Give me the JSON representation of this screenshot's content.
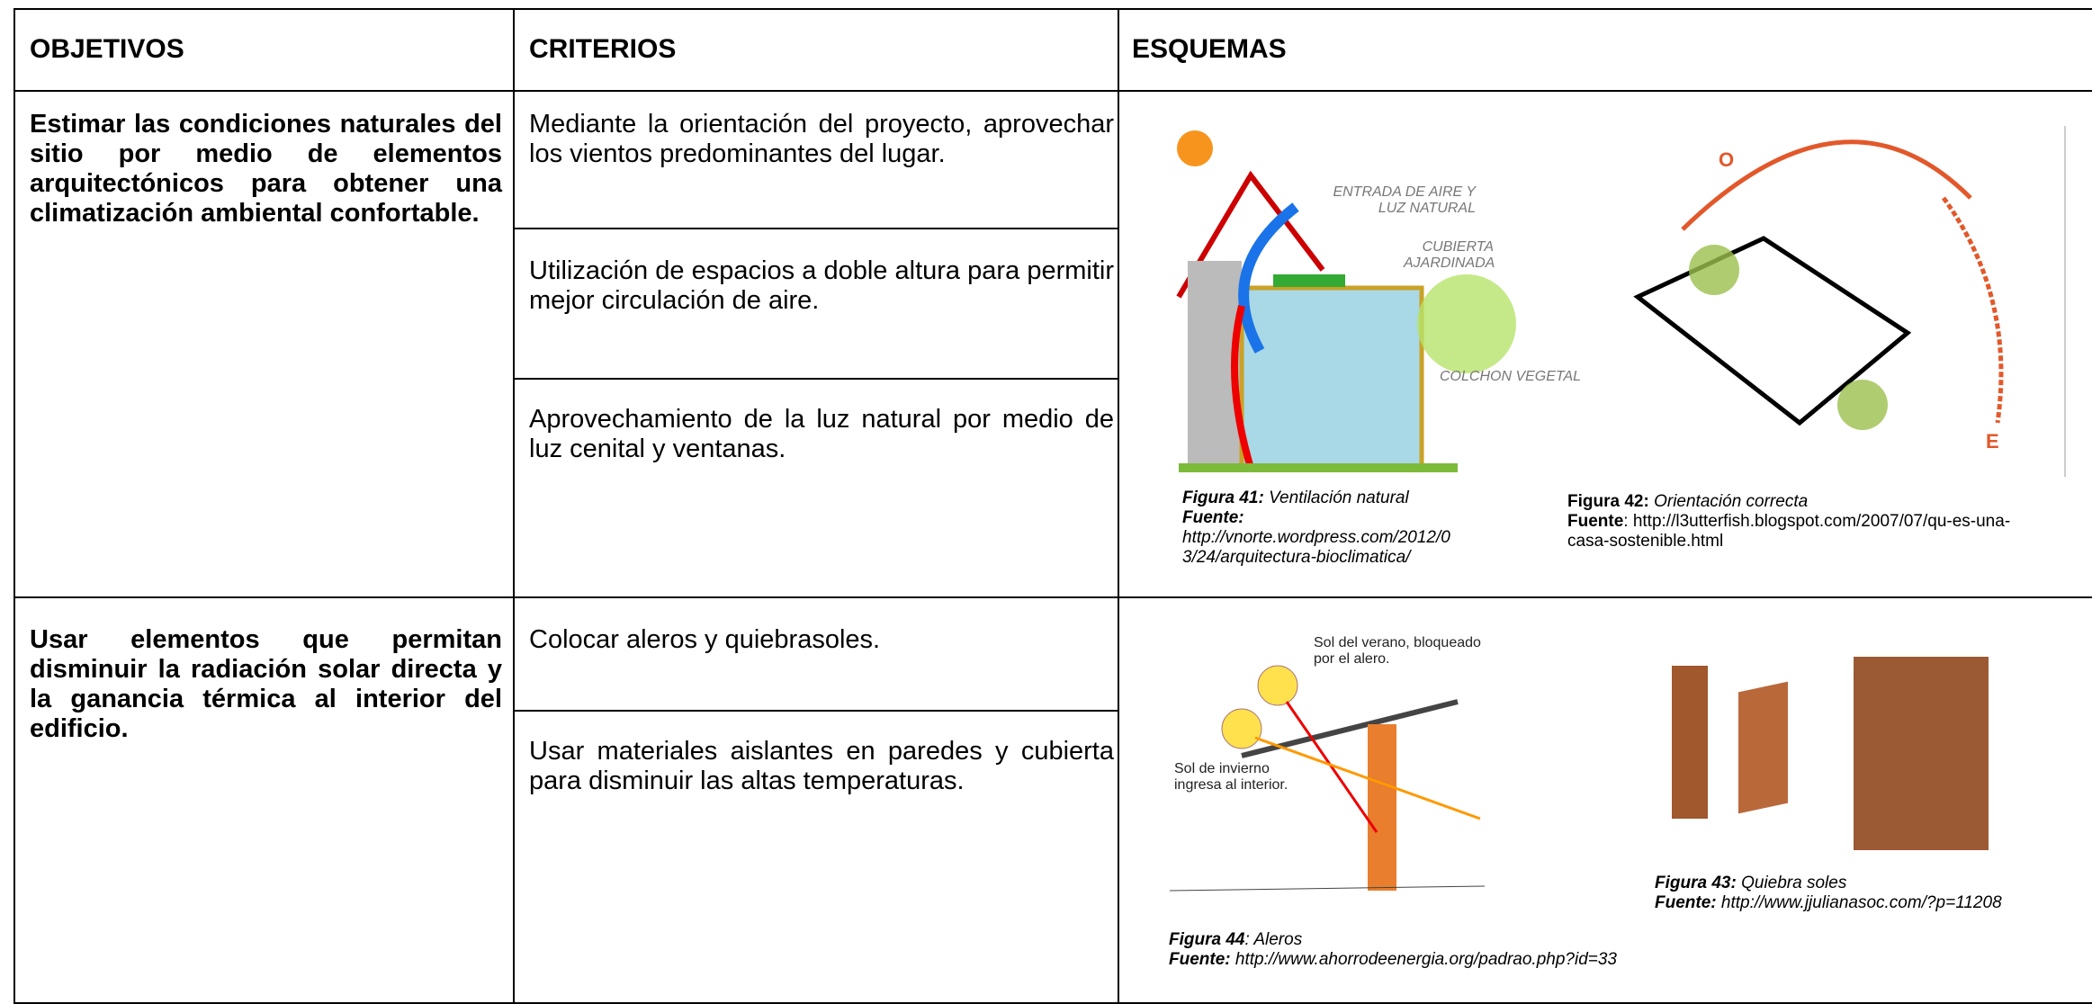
{
  "table": {
    "headers": [
      "OBJETIVOS",
      "CRITERIOS",
      "ESQUEMAS"
    ],
    "rows": [
      {
        "objective": "Estimar las condiciones naturales del sitio por medio de elementos arquitectónicos para obtener una climatización ambiental confortable.",
        "criteria": [
          "Mediante la orientación del proyecto, aprovechar los vientos predominantes del lugar.",
          "Utilización de espacios a doble altura para permitir mejor circulación de aire.",
          "Aprovechamiento de la luz natural por medio de luz cenital y ventanas."
        ],
        "figures": [
          {
            "number": "Figura 41:",
            "caption": "Ventilación natural",
            "source_label": "Fuente:",
            "source": "http://vnorte.wordpress.com/2012/03/24/arquitectura-bioclimatica/",
            "labels": [
              "ENTRADA DE AIRE Y LUZ NATURAL",
              "CUBIERTA AJARDINADA",
              "COLCHON VEGETAL"
            ]
          },
          {
            "number": "Figura 42:",
            "caption": "Orientación correcta",
            "source_label": "Fuente",
            "source": ": http://l3utterfish.blogspot.com/2007/07/qu-es-una-casa-sostenible.html",
            "labels": [
              "O",
              "E"
            ]
          }
        ]
      },
      {
        "objective": "Usar elementos que permitan disminuir la radiación solar directa y la ganancia térmica al interior del edificio.",
        "criteria": [
          "Colocar aleros y quiebrasoles.",
          "Usar materiales aislantes en paredes y cubierta para disminuir las altas temperaturas."
        ],
        "figures": [
          {
            "number": "Figura 44",
            "caption": ": Aleros",
            "source_label": "Fuente:",
            "source": "http://www.ahorrodeenergia.org/padrao.php?id=33",
            "labels": [
              "Sol del verano, bloqueado por el alero.",
              "Sol de invierno ingresa al interior."
            ]
          },
          {
            "number": "Figura 43:",
            "caption": "Quiebra soles",
            "source_label": "Fuente:",
            "source": "http://www.jjulianasoc.com/?p=11208",
            "labels": []
          }
        ]
      }
    ]
  }
}
